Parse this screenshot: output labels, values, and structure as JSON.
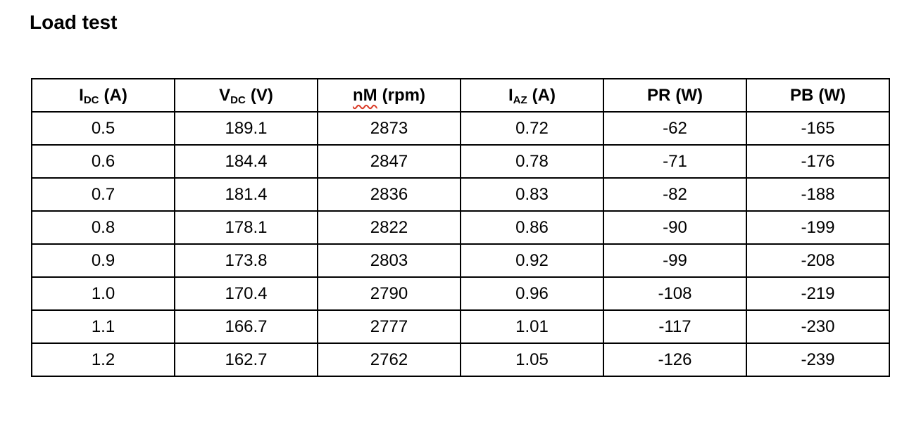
{
  "page": {
    "title": "Load test"
  },
  "colors": {
    "text": "#000000",
    "table_border": "#000000",
    "background": "#ffffff",
    "spellcheck_underline": "#da3b26"
  },
  "table": {
    "columns": [
      {
        "base": "I",
        "sub": "DC",
        "unit": "(A)",
        "spellcheck": false
      },
      {
        "base": "V",
        "sub": "DC",
        "unit": "(V)",
        "spellcheck": false
      },
      {
        "base": "nM",
        "sub": "",
        "unit": "(rpm)",
        "spellcheck": true
      },
      {
        "base": "I",
        "sub": "AZ",
        "unit": "(A)",
        "spellcheck": false
      },
      {
        "base": "PR",
        "sub": "",
        "unit": "(W)",
        "spellcheck": false
      },
      {
        "base": "PB",
        "sub": "",
        "unit": "(W)",
        "spellcheck": false
      }
    ],
    "rows": [
      [
        "0.5",
        "189.1",
        "2873",
        "0.72",
        "-62",
        "-165"
      ],
      [
        "0.6",
        "184.4",
        "2847",
        "0.78",
        "-71",
        "-176"
      ],
      [
        "0.7",
        "181.4",
        "2836",
        "0.83",
        "-82",
        "-188"
      ],
      [
        "0.8",
        "178.1",
        "2822",
        "0.86",
        "-90",
        "-199"
      ],
      [
        "0.9",
        "173.8",
        "2803",
        "0.92",
        "-99",
        "-208"
      ],
      [
        "1.0",
        "170.4",
        "2790",
        "0.96",
        "-108",
        "-219"
      ],
      [
        "1.1",
        "166.7",
        "2777",
        "1.01",
        "-117",
        "-230"
      ],
      [
        "1.2",
        "162.7",
        "2762",
        "1.05",
        "-126",
        "-239"
      ]
    ]
  }
}
